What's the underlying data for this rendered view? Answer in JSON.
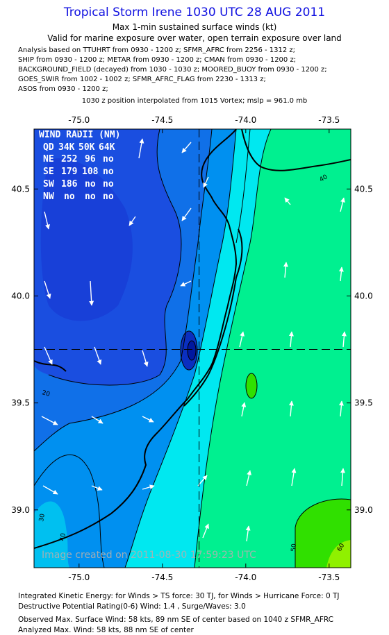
{
  "title": "Tropical Storm Irene 1030 UTC 28 AUG 2011",
  "subtitle1": "Max 1-min sustained surface winds (kt)",
  "subtitle2": "Valid for marine exposure over water, open terrain exposure over land",
  "analysis_lines": [
    "Analysis based on TTUHRT from 0930 - 1200 z; SFMR_AFRC from 2256 - 1312 z;",
    "SHIP from 0930 - 1200 z; METAR from 0930 - 1200 z; CMAN from 0930 - 1200 z;",
    "BACKGROUND_FIELD (decayed) from 1030 - 1030 z; MOORED_BUOY from 0930 - 1200 z;",
    "GOES_SWIR from 1002 - 1002 z; SFMR_AFRC_FLAG from 2230 - 1313 z;",
    "ASOS from 0930 - 1200 z;"
  ],
  "position_note": "1030 z position interpolated from 1015 Vortex; mslp = 961.0 mb",
  "x_ticks": [
    "-75.0",
    "-74.5",
    "-74.0",
    "-73.5"
  ],
  "x_tick_values": [
    -75.0,
    -74.5,
    -74.0,
    -73.5
  ],
  "y_ticks": [
    "40.5",
    "40.0",
    "39.5",
    "39.0"
  ],
  "y_tick_values": [
    40.5,
    40.0,
    39.5,
    39.0
  ],
  "lon_range": [
    -75.27,
    -73.37
  ],
  "lat_range": [
    38.73,
    40.78
  ],
  "center": {
    "lon": -74.28,
    "lat": 39.75
  },
  "wind_radii": {
    "header": "WIND RADII (NM)",
    "columns": [
      "QD",
      "34K",
      "50K",
      "64K"
    ],
    "rows": [
      [
        "NE",
        "252",
        "96",
        "no"
      ],
      [
        "SE",
        "179",
        "108",
        "no"
      ],
      [
        "SW",
        "186",
        "no",
        "no"
      ],
      [
        "NW",
        "no",
        "no",
        "no"
      ]
    ]
  },
  "contour_labels": [
    "20",
    "30",
    "40",
    "40",
    "50",
    "60"
  ],
  "watermark": "Image created on 2011-08-30 17:59:23 UTC",
  "footer_lines": [
    "Integrated Kinetic Energy:  for Winds > TS force: 30 TJ,  for Winds > Hurricane Force: 0 TJ",
    "Destructive Potential Rating(0-6)   Wind: 1.4 , Surge/Waves: 3.0",
    "Observed Max. Surface Wind: 58 kts, 89 nm SE of center based on 1040 z SFMR_AFRC",
    "Analyzed Max. Wind: 58 kts, 88 nm SE of center"
  ],
  "colors": {
    "title": "#1010e0",
    "low_wind": "#1a4ee0",
    "mid_wind": "#00e8f0",
    "high_wind": "#00f090",
    "max_wind": "#30e000"
  }
}
